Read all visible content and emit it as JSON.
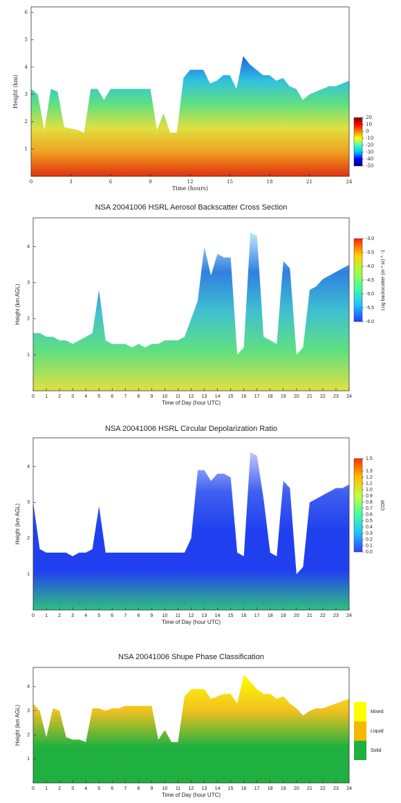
{
  "chart_data": [
    {
      "type": "area",
      "x_label": "Time (hours)",
      "y_label": "Height (km)",
      "xlim": [
        0,
        24
      ],
      "ylim": [
        0,
        6.2
      ],
      "xticks": [
        0,
        3,
        6,
        9,
        12,
        15,
        18,
        21,
        24
      ],
      "yticks": [
        1,
        2,
        3,
        4,
        5,
        6
      ],
      "fill_colors": [
        "#e03010",
        "#f0a020",
        "#e0e040",
        "#60e080",
        "#30c0e0",
        "#2060e0"
      ],
      "x": [
        0,
        0.5,
        1,
        1.5,
        2,
        2.5,
        3,
        3.5,
        4,
        4.5,
        5,
        5.5,
        6,
        6.5,
        7,
        7.5,
        8,
        8.5,
        9,
        9.5,
        10,
        10.5,
        11,
        11.5,
        12,
        12.5,
        13,
        13.5,
        14,
        14.5,
        15,
        15.5,
        16,
        16.5,
        17,
        17.5,
        18,
        18.5,
        19,
        19.5,
        20,
        20.5,
        21,
        21.5,
        22,
        22.5,
        23,
        23.5,
        24
      ],
      "values": [
        3.2,
        3.0,
        1.7,
        3.2,
        3.1,
        1.8,
        1.75,
        1.7,
        1.6,
        3.2,
        3.2,
        2.8,
        3.2,
        3.2,
        3.2,
        3.2,
        3.2,
        3.2,
        3.2,
        1.7,
        2.3,
        1.6,
        1.6,
        3.6,
        3.9,
        3.9,
        3.9,
        3.4,
        3.5,
        3.7,
        3.7,
        3.2,
        4.4,
        4.1,
        3.9,
        3.7,
        3.7,
        3.5,
        3.6,
        3.3,
        3.2,
        2.8,
        3.0,
        3.1,
        3.2,
        3.3,
        3.3,
        3.4,
        3.5
      ],
      "colorbar": {
        "clim": [
          -50,
          20
        ],
        "ticks": [
          20,
          10,
          0,
          -10,
          -20,
          -30,
          -40,
          -50
        ],
        "colors": [
          "#000080",
          "#0000ff",
          "#00c0ff",
          "#40ffc0",
          "#ffff00",
          "#ff8000",
          "#ff0000",
          "#800000"
        ]
      }
    },
    {
      "type": "area",
      "title": "NSA 20041006 HSRL Aerosol Backscatter Cross Section",
      "x_label": "Time of Day (hour UTC)",
      "y_label": "Height (km AGL)",
      "xlim": [
        0,
        24
      ],
      "ylim": [
        0,
        4.8
      ],
      "xticks": [
        0,
        1,
        2,
        3,
        4,
        5,
        6,
        7,
        8,
        9,
        10,
        11,
        12,
        13,
        14,
        15,
        16,
        17,
        18,
        19,
        20,
        21,
        22,
        23,
        24
      ],
      "yticks": [
        1,
        2,
        3,
        4
      ],
      "fill_colors": [
        "#e0e040",
        "#60e080",
        "#40c0d0",
        "#3080e0",
        "#c0e8f8"
      ],
      "x": [
        0,
        0.5,
        1,
        1.5,
        2,
        2.5,
        3,
        3.5,
        4,
        4.5,
        5,
        5.5,
        6,
        6.5,
        7,
        7.5,
        8,
        8.5,
        9,
        9.5,
        10,
        10.5,
        11,
        11.5,
        12,
        12.5,
        13,
        13.5,
        14,
        14.5,
        15,
        15.5,
        16,
        16.5,
        17,
        17.5,
        18,
        18.5,
        19,
        19.5,
        20,
        20.5,
        21,
        21.5,
        22,
        22.5,
        23,
        23.5,
        24
      ],
      "values": [
        1.6,
        1.6,
        1.5,
        1.5,
        1.4,
        1.4,
        1.3,
        1.4,
        1.5,
        1.6,
        2.8,
        1.4,
        1.3,
        1.3,
        1.3,
        1.2,
        1.3,
        1.2,
        1.3,
        1.3,
        1.4,
        1.4,
        1.4,
        1.5,
        2.0,
        2.5,
        4.0,
        3.2,
        3.8,
        3.7,
        3.7,
        1.0,
        1.2,
        4.4,
        4.3,
        1.5,
        1.4,
        1.3,
        3.6,
        3.4,
        1.0,
        1.2,
        2.8,
        2.9,
        3.1,
        3.2,
        3.3,
        3.4,
        3.5
      ],
      "colorbar": {
        "clim": [
          -6,
          -3
        ],
        "label": "Log backscatter (m * sr) ^ -1",
        "ticks": [
          {
            "value": -3,
            "label": "-3.0"
          },
          {
            "value": -3.5,
            "label": "-3.5"
          },
          {
            "value": -4,
            "label": "-4.0"
          },
          {
            "value": -4.5,
            "label": "-4.5"
          },
          {
            "value": -5,
            "label": "-5.0"
          },
          {
            "value": -5.5,
            "label": "-5.5"
          },
          {
            "value": -6,
            "label": "-6.0"
          }
        ],
        "colors": [
          "#2040ff",
          "#20c0ff",
          "#40ffa0",
          "#a0ff40",
          "#ffd000",
          "#ff2000"
        ]
      }
    },
    {
      "type": "area",
      "title": "NSA 20041006 HSRL Circular Depolarization Ratio",
      "x_label": "Time of Day (hour UTC)",
      "y_label": "Height (km AGL)",
      "xlim": [
        0,
        24
      ],
      "ylim": [
        0,
        4.8
      ],
      "xticks": [
        0,
        1,
        2,
        3,
        4,
        5,
        6,
        7,
        8,
        9,
        10,
        11,
        12,
        13,
        14,
        15,
        16,
        17,
        18,
        19,
        20,
        21,
        22,
        23,
        24
      ],
      "yticks": [
        1,
        2,
        3,
        4
      ],
      "fill_colors": [
        "#30c080",
        "#2040f0",
        "#2040f0",
        "#4060f0",
        "#c0c8f8"
      ],
      "x": [
        0,
        0.5,
        1,
        1.5,
        2,
        2.5,
        3,
        3.5,
        4,
        4.5,
        5,
        5.5,
        6,
        6.5,
        7,
        7.5,
        8,
        8.5,
        9,
        9.5,
        10,
        10.5,
        11,
        11.5,
        12,
        12.5,
        13,
        13.5,
        14,
        14.5,
        15,
        15.5,
        16,
        16.5,
        17,
        17.5,
        18,
        18.5,
        19,
        19.5,
        20,
        20.5,
        21,
        21.5,
        22,
        22.5,
        23,
        23.5,
        24
      ],
      "values": [
        3.0,
        1.7,
        1.6,
        1.6,
        1.6,
        1.6,
        1.5,
        1.6,
        1.6,
        1.7,
        2.9,
        1.6,
        1.6,
        1.6,
        1.6,
        1.6,
        1.6,
        1.6,
        1.6,
        1.6,
        1.6,
        1.6,
        1.6,
        1.6,
        2.0,
        3.9,
        3.9,
        3.6,
        3.8,
        3.8,
        3.7,
        1.6,
        1.5,
        4.4,
        4.3,
        3.1,
        1.6,
        1.5,
        3.6,
        3.4,
        1.0,
        1.2,
        3.0,
        3.1,
        3.2,
        3.3,
        3.4,
        3.4,
        3.5
      ],
      "colorbar": {
        "clim": [
          0,
          1.5
        ],
        "label": "CDR",
        "ticks": [
          {
            "value": 1.5,
            "label": "1.5"
          },
          {
            "value": 1.3,
            "label": "1.3"
          },
          {
            "value": 1.2,
            "label": "1.2"
          },
          {
            "value": 1.1,
            "label": "1.1"
          },
          {
            "value": 1.0,
            "label": "1.0"
          },
          {
            "value": 0.9,
            "label": "0.9"
          },
          {
            "value": 0.8,
            "label": "0.8"
          },
          {
            "value": 0.7,
            "label": "0.7"
          },
          {
            "value": 0.6,
            "label": "0.6"
          },
          {
            "value": 0.5,
            "label": "0.5"
          },
          {
            "value": 0.4,
            "label": "0.4"
          },
          {
            "value": 0.3,
            "label": "0.3"
          },
          {
            "value": 0.2,
            "label": "0.2"
          },
          {
            "value": 0.1,
            "label": "0.1"
          },
          {
            "value": 0,
            "label": "0.0"
          }
        ],
        "colors": [
          "#3040ff",
          "#20c0ff",
          "#40ffa0",
          "#c0ff40",
          "#ffc000",
          "#ff3000"
        ]
      }
    },
    {
      "type": "area",
      "title": "NSA 20041006 Shupe Phase Classification",
      "x_label": "Time of Day (hour UTC)",
      "y_label": "Height (km AGL)",
      "xlim": [
        0,
        24
      ],
      "ylim": [
        0,
        4.8
      ],
      "xticks": [
        0,
        1,
        2,
        3,
        4,
        5,
        6,
        7,
        8,
        9,
        10,
        11,
        12,
        13,
        14,
        15,
        16,
        17,
        18,
        19,
        20,
        21,
        22,
        23,
        24
      ],
      "yticks": [
        1,
        2,
        3,
        4
      ],
      "fill_colors": [
        "#20b040",
        "#20b040",
        "#f0c020",
        "#ffff00"
      ],
      "x": [
        0,
        0.5,
        1,
        1.5,
        2,
        2.5,
        3,
        3.5,
        4,
        4.5,
        5,
        5.5,
        6,
        6.5,
        7,
        7.5,
        8,
        8.5,
        9,
        9.5,
        10,
        10.5,
        11,
        11.5,
        12,
        12.5,
        13,
        13.5,
        14,
        14.5,
        15,
        15.5,
        16,
        16.5,
        17,
        17.5,
        18,
        18.5,
        19,
        19.5,
        20,
        20.5,
        21,
        21.5,
        22,
        22.5,
        23,
        23.5,
        24
      ],
      "values": [
        3.3,
        3.0,
        1.9,
        3.1,
        3.0,
        1.9,
        1.8,
        1.8,
        1.7,
        3.1,
        3.1,
        3.0,
        3.1,
        3.1,
        3.2,
        3.2,
        3.2,
        3.2,
        3.2,
        1.8,
        2.2,
        1.7,
        1.7,
        3.6,
        3.9,
        3.9,
        3.9,
        3.5,
        3.6,
        3.7,
        3.7,
        3.3,
        4.5,
        4.2,
        3.9,
        3.7,
        3.7,
        3.5,
        3.6,
        3.3,
        3.1,
        2.8,
        3.0,
        3.1,
        3.1,
        3.2,
        3.3,
        3.4,
        3.5
      ],
      "legend": [
        {
          "name": "Mixed",
          "color": "#ffff00"
        },
        {
          "name": "Liquid",
          "color": "#f5b800"
        },
        {
          "name": "Solid",
          "color": "#20b040"
        }
      ]
    }
  ]
}
